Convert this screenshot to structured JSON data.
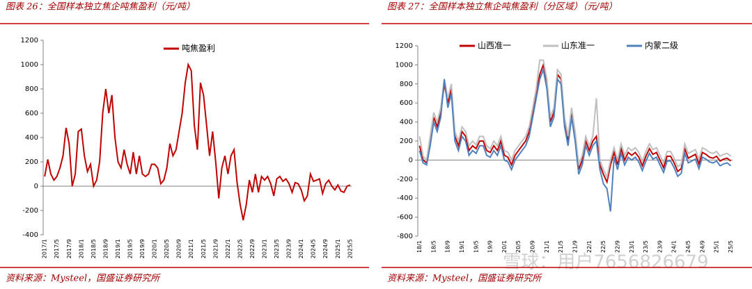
{
  "chart_data": [
    {
      "type": "line",
      "title": "图表 26：全国样本独立焦企吨焦盈利（元/吨）",
      "source": "资料来源：Mysteel，国盛证券研究所",
      "categories": [
        "2017/1",
        null,
        null,
        null,
        "2017/5",
        null,
        null,
        null,
        "2017/9",
        null,
        null,
        null,
        "2018/1",
        null,
        null,
        null,
        "2018/5",
        null,
        null,
        null,
        "2018/9",
        null,
        null,
        null,
        "2019/1",
        null,
        null,
        null,
        "2019/5",
        null,
        null,
        null,
        "2019/9",
        null,
        null,
        null,
        "2020/1",
        null,
        null,
        null,
        "2020/5",
        null,
        null,
        null,
        "2020/9",
        null,
        null,
        null,
        "2021/1",
        null,
        null,
        null,
        "2021/5",
        null,
        null,
        null,
        "2021/9",
        null,
        null,
        null,
        "2022/1",
        null,
        null,
        null,
        "2022/5",
        null,
        null,
        null,
        "2022/9",
        null,
        null,
        null,
        "2023/1",
        null,
        null,
        null,
        "2023/5",
        null,
        null,
        null,
        "2023/9",
        null,
        null,
        null,
        "2024/1",
        null,
        null,
        null,
        "2024/5",
        null,
        null,
        null,
        "2024/9",
        null,
        null,
        null,
        "2025/1",
        null,
        null,
        null,
        "2025/5"
      ],
      "series": [
        {
          "name": "吨焦盈利",
          "color": "#c00000",
          "values": [
            80,
            220,
            100,
            50,
            80,
            150,
            250,
            480,
            350,
            0,
            100,
            450,
            470,
            250,
            120,
            180,
            0,
            50,
            200,
            600,
            800,
            600,
            750,
            400,
            200,
            150,
            300,
            180,
            100,
            280,
            100,
            250,
            100,
            80,
            100,
            180,
            180,
            150,
            20,
            50,
            150,
            350,
            250,
            300,
            450,
            600,
            850,
            1000,
            950,
            500,
            300,
            850,
            750,
            500,
            250,
            450,
            200,
            -100,
            150,
            250,
            100,
            250,
            300,
            30,
            -150,
            -280,
            -150,
            50,
            -50,
            100,
            -50,
            80,
            50,
            80,
            20,
            -80,
            60,
            80,
            40,
            60,
            20,
            -50,
            30,
            20,
            -30,
            -120,
            -80,
            100,
            40,
            50,
            60,
            -60,
            20,
            50,
            0,
            -30,
            10,
            -40,
            -50,
            0,
            10
          ]
        }
      ],
      "ylim": [
        -400,
        1200
      ],
      "yticks": [
        -400,
        -200,
        0,
        200,
        400,
        600,
        800,
        1000,
        1200
      ]
    },
    {
      "type": "line",
      "title": "图表 27：全国样本独立焦企吨焦盈利（分区域）（元/吨）",
      "source": "资料来源：Mysteel，国盛证券研究所",
      "categories": [
        "18/1",
        null,
        null,
        null,
        "18/5",
        null,
        null,
        null,
        "18/9",
        null,
        null,
        null,
        "19/1",
        null,
        null,
        null,
        "19/5",
        null,
        null,
        null,
        "19/9",
        null,
        null,
        null,
        "20/1",
        null,
        null,
        null,
        "20/5",
        null,
        null,
        null,
        "20/9",
        null,
        null,
        null,
        "21/1",
        null,
        null,
        null,
        "21/5",
        null,
        null,
        null,
        "21/9",
        null,
        null,
        null,
        "22/1",
        null,
        null,
        null,
        "22/5",
        null,
        null,
        null,
        "22/9",
        null,
        null,
        null,
        "23/1",
        null,
        null,
        null,
        "23/5",
        null,
        null,
        null,
        "23/9",
        null,
        null,
        null,
        "24/1",
        null,
        null,
        null,
        "24/5",
        null,
        null,
        null,
        "24/9",
        null,
        null,
        null,
        "25/1",
        null,
        null,
        null,
        "25/5"
      ],
      "series": [
        {
          "name": "山西准一",
          "color": "#c00000",
          "values": [
            150,
            0,
            -30,
            200,
            450,
            350,
            500,
            800,
            600,
            750,
            250,
            150,
            300,
            250,
            100,
            150,
            120,
            200,
            200,
            100,
            80,
            150,
            100,
            200,
            50,
            30,
            -50,
            50,
            100,
            150,
            200,
            300,
            500,
            700,
            900,
            1000,
            800,
            400,
            500,
            900,
            850,
            400,
            200,
            500,
            250,
            -100,
            0,
            200,
            100,
            200,
            250,
            -50,
            -150,
            -230,
            -50,
            80,
            -50,
            120,
            0,
            80,
            50,
            80,
            30,
            -60,
            40,
            120,
            60,
            80,
            0,
            -80,
            40,
            40,
            -30,
            -120,
            -90,
            120,
            20,
            40,
            60,
            -40,
            80,
            60,
            30,
            20,
            40,
            -10,
            10,
            20,
            -10
          ]
        },
        {
          "name": "山东准一",
          "color": "#bfbfbf",
          "values": [
            250,
            40,
            0,
            250,
            500,
            400,
            550,
            850,
            650,
            800,
            300,
            200,
            350,
            300,
            150,
            200,
            160,
            250,
            250,
            150,
            120,
            200,
            150,
            250,
            100,
            80,
            0,
            100,
            150,
            200,
            250,
            350,
            550,
            750,
            1050,
            1050,
            850,
            450,
            550,
            950,
            900,
            450,
            250,
            550,
            300,
            -50,
            50,
            250,
            150,
            250,
            650,
            0,
            -100,
            -180,
            0,
            130,
            0,
            170,
            50,
            130,
            100,
            130,
            80,
            -10,
            90,
            170,
            110,
            130,
            50,
            -30,
            90,
            90,
            20,
            -70,
            -40,
            170,
            70,
            90,
            110,
            10,
            130,
            110,
            80,
            70,
            90,
            40,
            60,
            70,
            40
          ]
        },
        {
          "name": "内蒙二级",
          "color": "#4f81bd",
          "values": [
            100,
            -30,
            -50,
            150,
            400,
            300,
            450,
            850,
            550,
            700,
            200,
            100,
            250,
            200,
            50,
            100,
            70,
            150,
            150,
            50,
            30,
            100,
            50,
            150,
            0,
            -20,
            -100,
            0,
            50,
            100,
            150,
            250,
            450,
            650,
            850,
            950,
            750,
            350,
            450,
            850,
            800,
            350,
            150,
            450,
            200,
            -150,
            -50,
            150,
            50,
            150,
            200,
            -100,
            -250,
            -300,
            -540,
            30,
            -100,
            70,
            -50,
            30,
            0,
            30,
            -20,
            -110,
            -10,
            70,
            10,
            30,
            -50,
            -130,
            -10,
            -10,
            -80,
            -170,
            -140,
            70,
            -30,
            -10,
            10,
            -90,
            30,
            10,
            -20,
            -30,
            -10,
            -60,
            -40,
            -30,
            -60
          ]
        }
      ],
      "ylim": [
        -800,
        1200
      ],
      "yticks": [
        -800,
        -600,
        -400,
        -200,
        0,
        200,
        400,
        600,
        800,
        1000,
        1200
      ]
    }
  ],
  "watermark": "雪球：用户7656826679"
}
